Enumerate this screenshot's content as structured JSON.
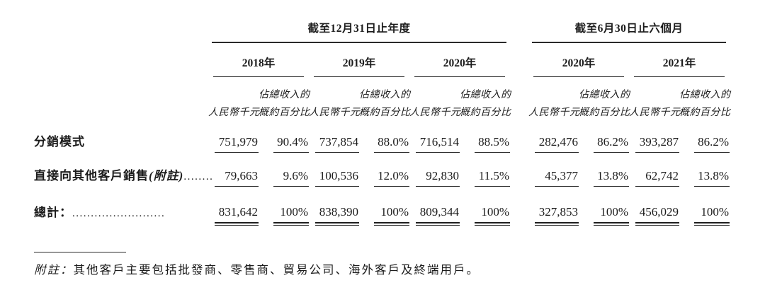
{
  "page": {
    "background": "#ffffff",
    "text_color": "#1c1c1c"
  },
  "table": {
    "col_groups": [
      {
        "title": "截至12月31日止年度",
        "years": [
          "2018年",
          "2019年",
          "2020年"
        ]
      },
      {
        "title": "截至6月30日止六個月",
        "years": [
          "2020年",
          "2021年"
        ]
      }
    ],
    "subheader": {
      "pct_line1": "佔總收入的",
      "amount": "人民幣千元",
      "pct": "概約百分比"
    },
    "rows": [
      {
        "label": "分銷模式",
        "note": "",
        "dots": "",
        "values": [
          "751,979",
          "90.4%",
          "737,854",
          "88.0%",
          "716,514",
          "88.5%",
          "282,476",
          "86.2%",
          "393,287",
          "86.2%"
        ]
      },
      {
        "label": "直接向其他客戶銷售",
        "note": "(附註)",
        "dots": "........",
        "values": [
          "79,663",
          "9.6%",
          "100,536",
          "12.0%",
          "92,830",
          "11.5%",
          "45,377",
          "13.8%",
          "62,742",
          "13.8%"
        ]
      },
      {
        "label": "總計：",
        "note": "",
        "dots": ".........................",
        "values": [
          "831,642",
          "100%",
          "838,390",
          "100%",
          "809,344",
          "100%",
          "327,853",
          "100%",
          "456,029",
          "100%"
        ]
      }
    ],
    "footnote": {
      "prefix": "附註：",
      "text": "其他客戶主要包括批發商、零售商、貿易公司、海外客戶及終端用戶。"
    }
  }
}
